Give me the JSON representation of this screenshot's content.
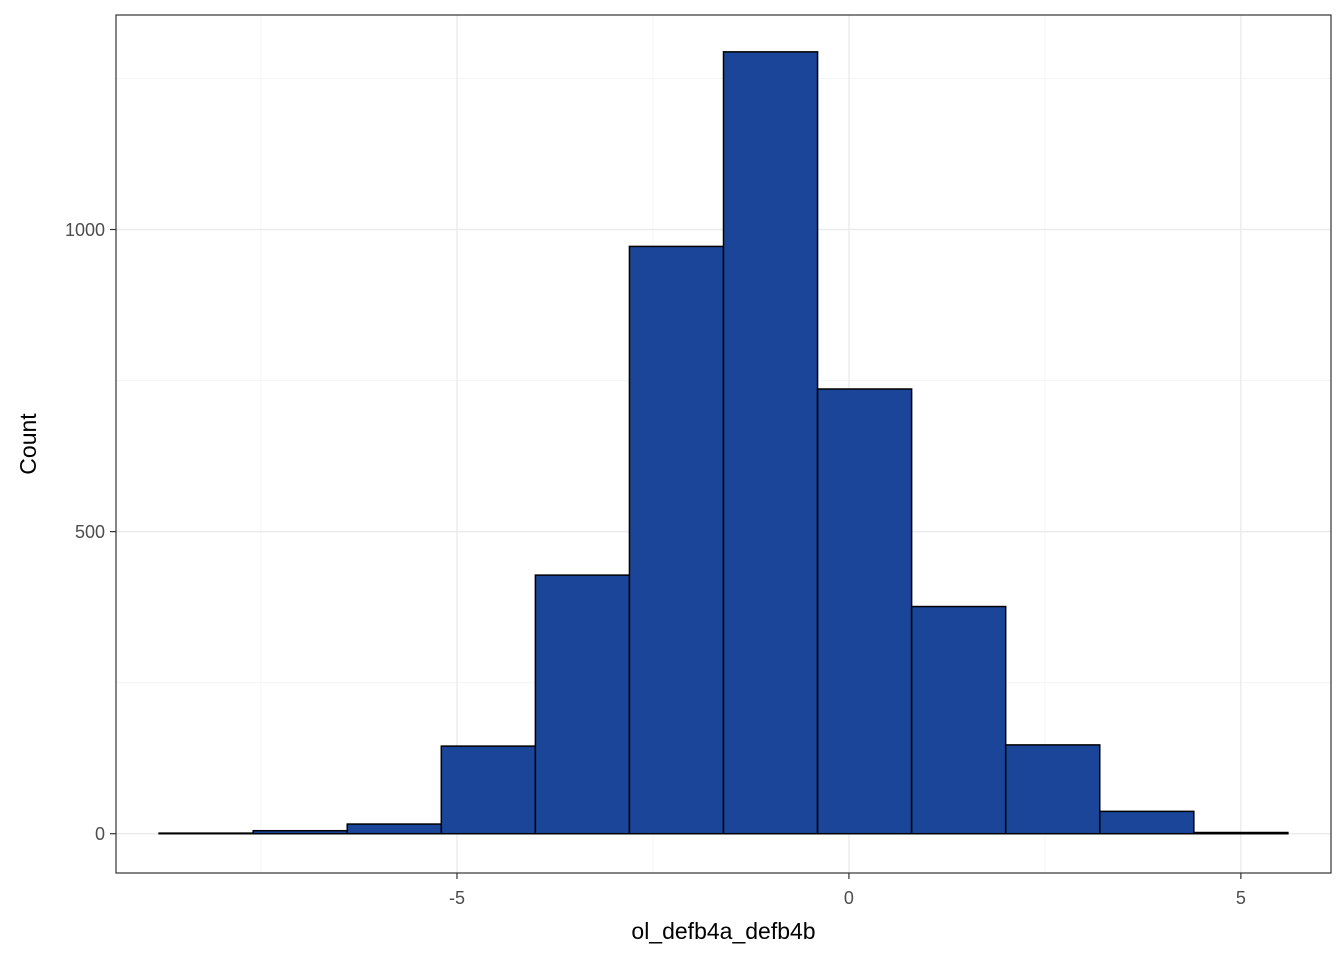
{
  "chart_data": {
    "type": "bar",
    "subtype": "histogram",
    "title": "",
    "xlabel": "ol_defb4a_defb4b",
    "ylabel": "Count",
    "bins": [
      {
        "x0": -8.8,
        "x1": -7.6,
        "count": 1
      },
      {
        "x0": -7.6,
        "x1": -6.4,
        "count": 5
      },
      {
        "x0": -6.4,
        "x1": -5.2,
        "count": 16
      },
      {
        "x0": -5.2,
        "x1": -4.0,
        "count": 145
      },
      {
        "x0": -4.0,
        "x1": -2.8,
        "count": 428
      },
      {
        "x0": -2.8,
        "x1": -1.6,
        "count": 972
      },
      {
        "x0": -1.6,
        "x1": -0.4,
        "count": 1294
      },
      {
        "x0": -0.4,
        "x1": 0.8,
        "count": 736
      },
      {
        "x0": 0.8,
        "x1": 2.0,
        "count": 376
      },
      {
        "x0": 2.0,
        "x1": 3.2,
        "count": 147
      },
      {
        "x0": 3.2,
        "x1": 4.4,
        "count": 37
      },
      {
        "x0": 4.4,
        "x1": 5.6,
        "count": 2
      }
    ],
    "xlim": [
      -9.35,
      6.15
    ],
    "ylim": [
      -65,
      1355
    ],
    "x_ticks": [
      -5,
      0,
      5
    ],
    "x_tick_labels": [
      "-5",
      "0",
      "5"
    ],
    "y_ticks": [
      0,
      500,
      1000
    ],
    "y_tick_labels": [
      "0",
      "500",
      "1000"
    ],
    "x_minor_ticks": [
      -7.5,
      -2.5,
      2.5
    ],
    "y_minor_ticks": [
      250,
      750,
      1250
    ],
    "grid": true,
    "theme": "bw",
    "colors": {
      "bar_fill": "#1a4599",
      "bar_outline": "#000000",
      "grid_major": "#ebebeb",
      "grid_minor": "#f5f5f5",
      "panel_border": "#333333",
      "tick_text": "#4d4d4d"
    }
  }
}
